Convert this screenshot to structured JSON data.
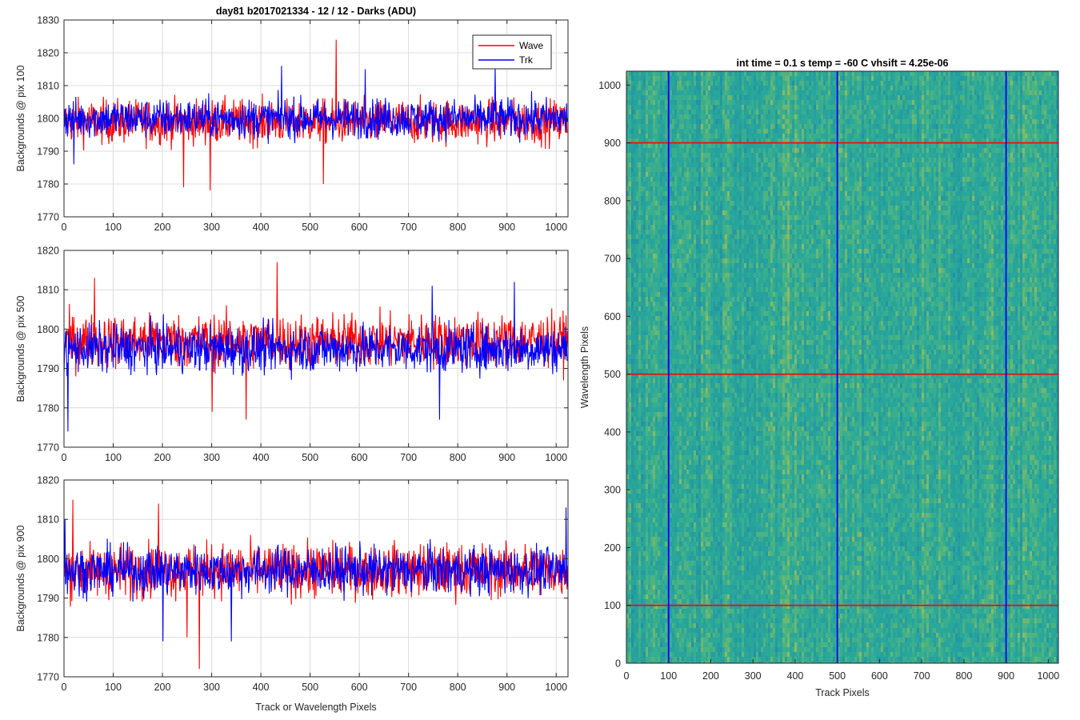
{
  "figure": {
    "title": "day81 b2017021334 - 12 / 12 - Darks (ADU)",
    "image_title": "int time = 0.1 s   temp = -60 C   vhsift = 4.25e-06",
    "shared_xlabel": "Track or Wavelength Pixels"
  },
  "legend": {
    "entries": [
      "Wave",
      "Trk"
    ],
    "colors": [
      "#ff0000",
      "#0000ff"
    ],
    "position": "top-right"
  },
  "chart_data": [
    {
      "type": "line",
      "ylabel": "Backgrounds @ pix 100",
      "xlabel": "",
      "xlim": [
        0,
        1024
      ],
      "ylim": [
        1770,
        1830
      ],
      "yticks": [
        1770,
        1780,
        1790,
        1800,
        1810,
        1820,
        1830
      ],
      "xticks": [
        0,
        100,
        200,
        300,
        400,
        500,
        600,
        700,
        800,
        900,
        1000
      ],
      "grid": true,
      "series": [
        {
          "name": "Wave",
          "color": "#ff0000",
          "mean": 1799,
          "noise": 4.5,
          "extremes": [
            [
              553,
              1824
            ],
            [
              297,
              1778
            ],
            [
              243,
              1779
            ],
            [
              527,
              1780
            ]
          ]
        },
        {
          "name": "Trk",
          "color": "#0000ff",
          "mean": 1800,
          "noise": 4,
          "extremes": [
            [
              442,
              1816
            ],
            [
              876,
              1816
            ],
            [
              612,
              1815
            ],
            [
              20,
              1786
            ]
          ]
        }
      ]
    },
    {
      "type": "line",
      "ylabel": "Backgrounds @ pix 500",
      "xlabel": "",
      "xlim": [
        0,
        1024
      ],
      "ylim": [
        1770,
        1820
      ],
      "yticks": [
        1770,
        1780,
        1790,
        1800,
        1810,
        1820
      ],
      "xticks": [
        0,
        100,
        200,
        300,
        400,
        500,
        600,
        700,
        800,
        900,
        1000
      ],
      "grid": true,
      "series": [
        {
          "name": "Wave",
          "color": "#ff0000",
          "mean": 1797,
          "noise": 4.5,
          "extremes": [
            [
              433,
              1817
            ],
            [
              62,
              1813
            ],
            [
              301,
              1779
            ],
            [
              370,
              1777
            ]
          ]
        },
        {
          "name": "Trk",
          "color": "#0000ff",
          "mean": 1795,
          "noise": 4,
          "extremes": [
            [
              8,
              1774
            ],
            [
              748,
              1811
            ],
            [
              915,
              1812
            ],
            [
              763,
              1777
            ]
          ]
        }
      ]
    },
    {
      "type": "line",
      "ylabel": "Backgrounds @ pix 900",
      "xlabel": "Track or Wavelength Pixels",
      "xlim": [
        0,
        1024
      ],
      "ylim": [
        1770,
        1820
      ],
      "yticks": [
        1770,
        1780,
        1790,
        1800,
        1810,
        1820
      ],
      "xticks": [
        0,
        100,
        200,
        300,
        400,
        500,
        600,
        700,
        800,
        900,
        1000
      ],
      "grid": true,
      "series": [
        {
          "name": "Wave",
          "color": "#ff0000",
          "mean": 1797,
          "noise": 4.5,
          "extremes": [
            [
              275,
              1772
            ],
            [
              192,
              1814
            ],
            [
              18,
              1815
            ],
            [
              250,
              1780
            ]
          ]
        },
        {
          "name": "Trk",
          "color": "#0000ff",
          "mean": 1797,
          "noise": 4,
          "extremes": [
            [
              1020,
              1813
            ],
            [
              201,
              1779
            ],
            [
              340,
              1779
            ],
            [
              2,
              1810
            ]
          ]
        }
      ]
    },
    {
      "type": "heatmap",
      "title": "int time = 0.1 s   temp = -60 C   vhsift = 4.25e-06",
      "xlabel": "Track Pixels",
      "ylabel": "Wavelength Pixels",
      "xlim": [
        0,
        1024
      ],
      "ylim": [
        0,
        1024
      ],
      "xticks": [
        0,
        100,
        200,
        300,
        400,
        500,
        600,
        700,
        800,
        900,
        1000
      ],
      "yticks": [
        0,
        100,
        200,
        300,
        400,
        500,
        600,
        700,
        800,
        900,
        1000
      ],
      "colormap": "parula",
      "base_color": "#2aa79b",
      "markers": {
        "vertical_track_pixels": [
          100,
          500,
          900
        ],
        "vertical_color": "#0000ff",
        "horizontal_wavelength_pixels": [
          100,
          500,
          900
        ],
        "horizontal_color": "#ff0000"
      }
    }
  ]
}
